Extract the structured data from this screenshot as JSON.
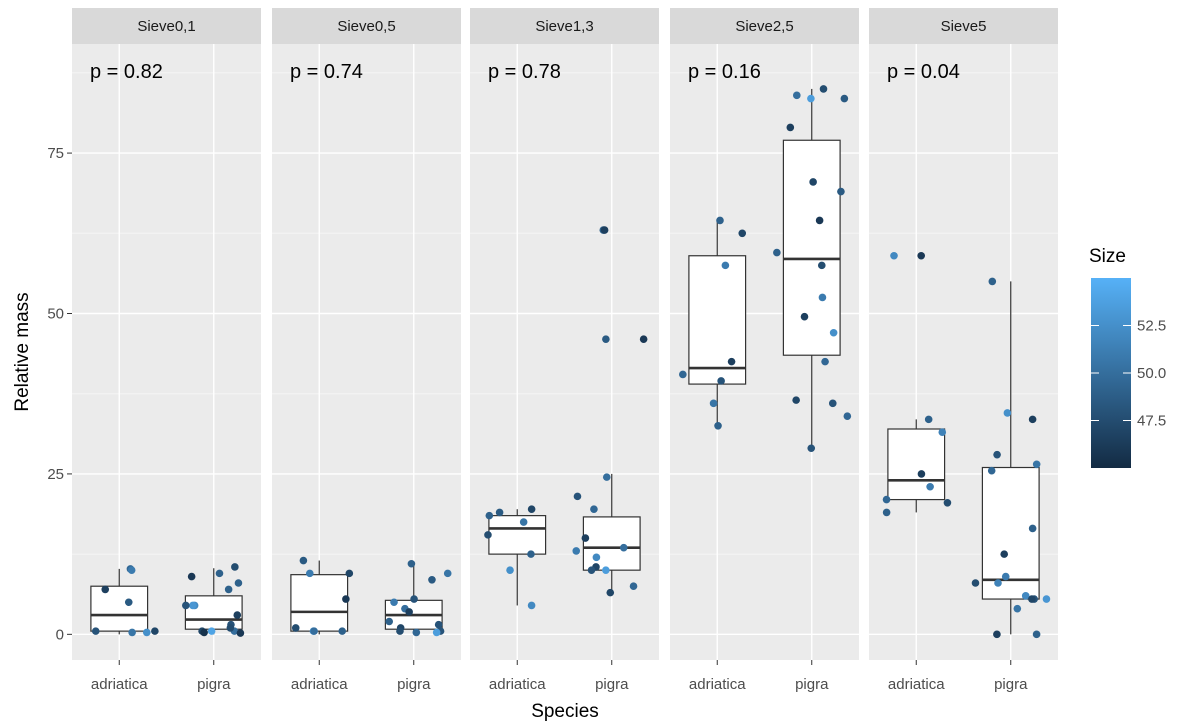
{
  "chart_data": {
    "type": "boxplot-jitter-faceted",
    "xlabel": "Species",
    "ylabel": "Relative mass",
    "ylim": [
      -4,
      92
    ],
    "yticks": [
      0,
      25,
      50,
      75
    ],
    "categories": [
      "adriatica",
      "pigra"
    ],
    "facets": [
      {
        "label": "Sieve0,1",
        "p_text": "p = 0.82",
        "boxes": [
          {
            "species": "adriatica",
            "q1": 0.5,
            "median": 3.0,
            "q3": 7.5,
            "whisker_low": 0.0,
            "whisker_high": 10.2
          },
          {
            "species": "pigra",
            "q1": 0.8,
            "median": 2.3,
            "q3": 6.0,
            "whisker_low": 0.0,
            "whisker_high": 10.3
          }
        ],
        "points": [
          {
            "species": "adriatica",
            "y": 10.2,
            "size": 49.5
          },
          {
            "species": "adriatica",
            "y": 7.0,
            "size": 46.5
          },
          {
            "species": "adriatica",
            "y": 5.0,
            "size": 48.5
          },
          {
            "species": "adriatica",
            "y": 0.5,
            "size": 47.0
          },
          {
            "species": "adriatica",
            "y": 0.3,
            "size": 50.5
          },
          {
            "species": "adriatica",
            "y": 10.0,
            "size": 51.0
          },
          {
            "species": "adriatica",
            "y": 0.5,
            "size": 48.0
          },
          {
            "species": "adriatica",
            "y": 0.3,
            "size": 52.5
          },
          {
            "species": "pigra",
            "y": 7.0,
            "size": 49.0
          },
          {
            "species": "pigra",
            "y": 3.0,
            "size": 46.5
          },
          {
            "species": "pigra",
            "y": 1.5,
            "size": 48.0
          },
          {
            "species": "pigra",
            "y": 0.5,
            "size": 47.0
          },
          {
            "species": "pigra",
            "y": 10.5,
            "size": 47.5
          },
          {
            "species": "pigra",
            "y": 9.0,
            "size": 46.0
          },
          {
            "species": "pigra",
            "y": 9.5,
            "size": 49.0
          },
          {
            "species": "pigra",
            "y": 4.5,
            "size": 52.0
          },
          {
            "species": "pigra",
            "y": 4.5,
            "size": 53.0
          },
          {
            "species": "pigra",
            "y": 0.5,
            "size": 50.0
          },
          {
            "species": "pigra",
            "y": 0.2,
            "size": 46.0
          },
          {
            "species": "pigra",
            "y": 8.0,
            "size": 49.0
          },
          {
            "species": "pigra",
            "y": 4.5,
            "size": 48.0
          },
          {
            "species": "pigra",
            "y": 0.5,
            "size": 54.0
          },
          {
            "species": "pigra",
            "y": 1.0,
            "size": 47.5
          },
          {
            "species": "pigra",
            "y": 0.3,
            "size": 45.5
          }
        ]
      },
      {
        "label": "Sieve0,5",
        "p_text": "p = 0.74",
        "boxes": [
          {
            "species": "adriatica",
            "q1": 0.5,
            "median": 3.5,
            "q3": 9.3,
            "whisker_low": 0.0,
            "whisker_high": 11.5
          },
          {
            "species": "pigra",
            "q1": 0.8,
            "median": 3.0,
            "q3": 5.3,
            "whisker_low": 0.0,
            "whisker_high": 11.0
          }
        ],
        "points": [
          {
            "species": "adriatica",
            "y": 11.5,
            "size": 48.5
          },
          {
            "species": "adriatica",
            "y": 9.5,
            "size": 51.0
          },
          {
            "species": "adriatica",
            "y": 9.5,
            "size": 47.0
          },
          {
            "species": "adriatica",
            "y": 5.5,
            "size": 46.0
          },
          {
            "species": "adriatica",
            "y": 0.5,
            "size": 52.5
          },
          {
            "species": "adriatica",
            "y": 0.5,
            "size": 50.0
          },
          {
            "species": "adriatica",
            "y": 0.5,
            "size": 49.0
          },
          {
            "species": "adriatica",
            "y": 1.0,
            "size": 47.5
          },
          {
            "species": "pigra",
            "y": 2.0,
            "size": 49.0
          },
          {
            "species": "pigra",
            "y": 1.0,
            "size": 47.0
          },
          {
            "species": "pigra",
            "y": 4.0,
            "size": 50.0
          },
          {
            "species": "pigra",
            "y": 5.5,
            "size": 48.0
          },
          {
            "species": "pigra",
            "y": 9.5,
            "size": 50.5
          },
          {
            "species": "pigra",
            "y": 11.0,
            "size": 49.0
          },
          {
            "species": "pigra",
            "y": 8.5,
            "size": 48.5
          },
          {
            "species": "pigra",
            "y": 5.0,
            "size": 51.0
          },
          {
            "species": "pigra",
            "y": 3.5,
            "size": 46.5
          },
          {
            "species": "pigra",
            "y": 0.5,
            "size": 48.0
          },
          {
            "species": "pigra",
            "y": 0.3,
            "size": 53.5
          },
          {
            "species": "pigra",
            "y": 0.5,
            "size": 47.5
          },
          {
            "species": "pigra",
            "y": 0.3,
            "size": 49.5
          },
          {
            "species": "pigra",
            "y": 1.5,
            "size": 48.0
          }
        ]
      },
      {
        "label": "Sieve1,3",
        "p_text": "p = 0.78",
        "boxes": [
          {
            "species": "adriatica",
            "q1": 12.5,
            "median": 16.5,
            "q3": 18.5,
            "whisker_low": 4.5,
            "whisker_high": 19.5
          },
          {
            "species": "pigra",
            "q1": 10.0,
            "median": 13.5,
            "q3": 18.3,
            "whisker_low": 6.5,
            "whisker_high": 25.0
          }
        ],
        "points": [
          {
            "species": "adriatica",
            "y": 19.5,
            "size": 47.0
          },
          {
            "species": "adriatica",
            "y": 18.5,
            "size": 49.0
          },
          {
            "species": "adriatica",
            "y": 17.5,
            "size": 50.5
          },
          {
            "species": "adriatica",
            "y": 15.5,
            "size": 47.5
          },
          {
            "species": "adriatica",
            "y": 12.5,
            "size": 49.0
          },
          {
            "species": "adriatica",
            "y": 10.0,
            "size": 52.5
          },
          {
            "species": "adriatica",
            "y": 4.5,
            "size": 52.0
          },
          {
            "species": "adriatica",
            "y": 19.0,
            "size": 48.5
          },
          {
            "species": "pigra",
            "y": 63.0,
            "size": 49.0
          },
          {
            "species": "pigra",
            "y": 63.0,
            "size": 46.5
          },
          {
            "species": "pigra",
            "y": 46.0,
            "size": 48.5
          },
          {
            "species": "pigra",
            "y": 46.0,
            "size": 46.0
          },
          {
            "species": "pigra",
            "y": 24.5,
            "size": 50.0
          },
          {
            "species": "pigra",
            "y": 21.5,
            "size": 48.0
          },
          {
            "species": "pigra",
            "y": 19.5,
            "size": 49.5
          },
          {
            "species": "pigra",
            "y": 15.0,
            "size": 46.5
          },
          {
            "species": "pigra",
            "y": 13.5,
            "size": 50.0
          },
          {
            "species": "pigra",
            "y": 13.0,
            "size": 51.0
          },
          {
            "species": "pigra",
            "y": 12.0,
            "size": 52.0
          },
          {
            "species": "pigra",
            "y": 10.5,
            "size": 47.0
          },
          {
            "species": "pigra",
            "y": 10.0,
            "size": 53.5
          },
          {
            "species": "pigra",
            "y": 10.0,
            "size": 48.0
          },
          {
            "species": "pigra",
            "y": 7.5,
            "size": 49.5
          },
          {
            "species": "pigra",
            "y": 6.5,
            "size": 47.0
          }
        ]
      },
      {
        "label": "Sieve2,5",
        "p_text": "p = 0.16",
        "boxes": [
          {
            "species": "adriatica",
            "q1": 39.0,
            "median": 41.5,
            "q3": 59.0,
            "whisker_low": 32.5,
            "whisker_high": 64.5
          },
          {
            "species": "pigra",
            "q1": 43.5,
            "median": 58.5,
            "q3": 77.0,
            "whisker_low": 29.0,
            "whisker_high": 85.0
          }
        ],
        "points": [
          {
            "species": "adriatica",
            "y": 64.5,
            "size": 49.0
          },
          {
            "species": "adriatica",
            "y": 62.5,
            "size": 47.0
          },
          {
            "species": "adriatica",
            "y": 57.5,
            "size": 51.0
          },
          {
            "species": "adriatica",
            "y": 42.5,
            "size": 46.5
          },
          {
            "species": "adriatica",
            "y": 40.5,
            "size": 49.5
          },
          {
            "species": "adriatica",
            "y": 39.5,
            "size": 48.0
          },
          {
            "species": "adriatica",
            "y": 36.0,
            "size": 50.5
          },
          {
            "species": "adriatica",
            "y": 32.5,
            "size": 49.0
          },
          {
            "species": "pigra",
            "y": 85.0,
            "size": 47.5
          },
          {
            "species": "pigra",
            "y": 84.0,
            "size": 50.0
          },
          {
            "species": "pigra",
            "y": 83.5,
            "size": 53.5
          },
          {
            "species": "pigra",
            "y": 83.5,
            "size": 48.5
          },
          {
            "species": "pigra",
            "y": 79.0,
            "size": 46.5
          },
          {
            "species": "pigra",
            "y": 70.5,
            "size": 47.0
          },
          {
            "species": "pigra",
            "y": 69.0,
            "size": 48.5
          },
          {
            "species": "pigra",
            "y": 64.5,
            "size": 46.0
          },
          {
            "species": "pigra",
            "y": 59.5,
            "size": 49.0
          },
          {
            "species": "pigra",
            "y": 57.5,
            "size": 47.5
          },
          {
            "species": "pigra",
            "y": 52.5,
            "size": 51.0
          },
          {
            "species": "pigra",
            "y": 49.5,
            "size": 46.5
          },
          {
            "species": "pigra",
            "y": 47.0,
            "size": 52.5
          },
          {
            "species": "pigra",
            "y": 42.5,
            "size": 49.5
          },
          {
            "species": "pigra",
            "y": 36.5,
            "size": 47.0
          },
          {
            "species": "pigra",
            "y": 36.0,
            "size": 48.0
          },
          {
            "species": "pigra",
            "y": 34.0,
            "size": 49.5
          },
          {
            "species": "pigra",
            "y": 29.0,
            "size": 48.0
          }
        ]
      },
      {
        "label": "Sieve5",
        "p_text": "p = 0.04",
        "boxes": [
          {
            "species": "adriatica",
            "q1": 21.0,
            "median": 24.0,
            "q3": 32.0,
            "whisker_low": 19.0,
            "whisker_high": 33.5
          },
          {
            "species": "pigra",
            "q1": 5.5,
            "median": 8.5,
            "q3": 26.0,
            "whisker_low": 0.0,
            "whisker_high": 55.0
          }
        ],
        "points": [
          {
            "species": "adriatica",
            "y": 59.0,
            "size": 52.0
          },
          {
            "species": "adriatica",
            "y": 59.0,
            "size": 46.0
          },
          {
            "species": "adriatica",
            "y": 33.5,
            "size": 49.0
          },
          {
            "species": "adriatica",
            "y": 31.5,
            "size": 51.5
          },
          {
            "species": "adriatica",
            "y": 25.0,
            "size": 46.5
          },
          {
            "species": "adriatica",
            "y": 23.0,
            "size": 51.0
          },
          {
            "species": "adriatica",
            "y": 21.0,
            "size": 49.5
          },
          {
            "species": "adriatica",
            "y": 20.5,
            "size": 47.5
          },
          {
            "species": "adriatica",
            "y": 19.0,
            "size": 49.0
          },
          {
            "species": "pigra",
            "y": 55.0,
            "size": 49.0
          },
          {
            "species": "pigra",
            "y": 34.5,
            "size": 52.5
          },
          {
            "species": "pigra",
            "y": 33.5,
            "size": 46.5
          },
          {
            "species": "pigra",
            "y": 28.0,
            "size": 48.0
          },
          {
            "species": "pigra",
            "y": 26.5,
            "size": 50.5
          },
          {
            "species": "pigra",
            "y": 25.5,
            "size": 49.5
          },
          {
            "species": "pigra",
            "y": 16.5,
            "size": 49.0
          },
          {
            "species": "pigra",
            "y": 12.5,
            "size": 46.5
          },
          {
            "species": "pigra",
            "y": 9.0,
            "size": 51.0
          },
          {
            "species": "pigra",
            "y": 8.0,
            "size": 47.5
          },
          {
            "species": "pigra",
            "y": 8.0,
            "size": 51.5
          },
          {
            "species": "pigra",
            "y": 6.0,
            "size": 52.0
          },
          {
            "species": "pigra",
            "y": 5.5,
            "size": 48.0
          },
          {
            "species": "pigra",
            "y": 5.5,
            "size": 47.0
          },
          {
            "species": "pigra",
            "y": 5.5,
            "size": 53.0
          },
          {
            "species": "pigra",
            "y": 4.0,
            "size": 50.5
          },
          {
            "species": "pigra",
            "y": 0.0,
            "size": 49.0
          },
          {
            "species": "pigra",
            "y": 0.0,
            "size": 46.5
          }
        ]
      }
    ],
    "legend": {
      "title": "Size",
      "position": "right",
      "breaks": [
        47.5,
        50.0,
        52.5
      ],
      "labels": [
        "47.5",
        "50.0",
        "52.5"
      ],
      "range": [
        45.0,
        55.0
      ],
      "color_low": "#132B43",
      "color_high": "#56B1F7"
    }
  }
}
